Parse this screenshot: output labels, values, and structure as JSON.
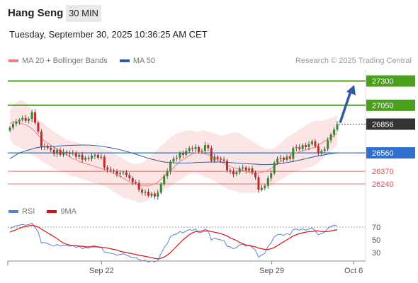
{
  "header": {
    "title": "Hang Seng",
    "timeframe": "30 MIN"
  },
  "datetime": "Tuesday, September 30, 2025 10:36:25 AM CET",
  "legend": [
    {
      "label": "MA 20 + Bollinger Bands",
      "color": "#f08080"
    },
    {
      "label": "MA 50",
      "color": "#2f5d9e"
    }
  ],
  "credit": "Research © 2025 Trading Central",
  "rsi_legend": [
    {
      "label": "RSI",
      "color": "#5b7fd6"
    },
    {
      "label": "9MA",
      "color": "#dd1111"
    }
  ],
  "chart_data": [
    {
      "type": "candlestick",
      "title": "Hang Seng",
      "timeframe": "30 MIN",
      "ylim": [
        26080,
        27420
      ],
      "current_price": 26856,
      "x_ticks": [
        "Sep 22",
        "Sep 29",
        "Oct 6"
      ],
      "levels": [
        {
          "value": 27300,
          "label": "27300",
          "type": "resistance",
          "color": "#4aa01a"
        },
        {
          "value": 27050,
          "label": "27050",
          "type": "resistance",
          "color": "#4aa01a"
        },
        {
          "value": 26856,
          "label": "26856",
          "type": "last",
          "color": "#333333"
        },
        {
          "value": 26560,
          "label": "26560",
          "type": "pivot",
          "color": "#2f6fd0"
        },
        {
          "value": 26370,
          "label": "26370",
          "type": "support",
          "color": "#e05050"
        },
        {
          "value": 26240,
          "label": "26240",
          "type": "support",
          "color": "#e05050"
        }
      ],
      "projection": {
        "from": 26870,
        "to": 27260
      },
      "close": [
        26820,
        26860,
        26880,
        26900,
        26920,
        26890,
        26910,
        26980,
        26870,
        26780,
        26620,
        26630,
        26610,
        26590,
        26550,
        26590,
        26540,
        26570,
        26560,
        26550,
        26560,
        26520,
        26540,
        26490,
        26510,
        26500,
        26530,
        26540,
        26510,
        26520,
        26410,
        26390,
        26380,
        26370,
        26340,
        26350,
        26360,
        26330,
        26300,
        26260,
        26250,
        26180,
        26150,
        26160,
        26120,
        26140,
        26110,
        26150,
        26240,
        26320,
        26370,
        26470,
        26500,
        26510,
        26560,
        26540,
        26580,
        26610,
        26600,
        26620,
        26570,
        26580,
        26640,
        26610,
        26480,
        26520,
        26500,
        26490,
        26480,
        26380,
        26370,
        26340,
        26360,
        26400,
        26410,
        26380,
        26400,
        26360,
        26310,
        26180,
        26200,
        26220,
        26300,
        26350,
        26460,
        26500,
        26510,
        26490,
        26520,
        26500,
        26610,
        26620,
        26600,
        26640,
        26620,
        26650,
        26680,
        26630,
        26560,
        26580,
        26600,
        26690,
        26750,
        26800,
        26856
      ],
      "ma20": [
        26860,
        26880,
        26880,
        26870,
        26860,
        26850,
        26830,
        26810,
        26780,
        26740,
        26710,
        26680,
        26660,
        26640,
        26620,
        26600,
        26580,
        26560,
        26540,
        26520,
        26500,
        26490,
        26470,
        26460,
        26450,
        26440,
        26430,
        26420,
        26410,
        26400,
        26390,
        26380,
        26360,
        26350,
        26330,
        26320,
        26300,
        26280,
        26260,
        26250,
        26240,
        26230,
        26220,
        26220,
        26220,
        26230,
        26240,
        26260,
        26290,
        26320,
        26350,
        26380,
        26410,
        26440,
        26470,
        26490,
        26510,
        26530,
        26550,
        26560,
        26560,
        26560,
        26550,
        26540,
        26530,
        26510,
        26490,
        26470,
        26450,
        26430,
        26420,
        26410,
        26400,
        26390,
        26380,
        26370,
        26360,
        26350,
        26350,
        26350,
        26360,
        26370,
        26380,
        26400,
        26420,
        26450,
        26470,
        26490,
        26510,
        26530,
        26550,
        26560,
        26570,
        26580,
        26590,
        26600,
        26610,
        26620,
        26640,
        26660,
        26680,
        26700,
        26720,
        26740,
        26760
      ],
      "bb_upper": [
        27000,
        27050,
        27080,
        27100,
        27100,
        27080,
        27050,
        27000,
        26950,
        26900,
        26880,
        26860,
        26830,
        26800,
        26780,
        26760,
        26740,
        26720,
        26700,
        26690,
        26680,
        26670,
        26660,
        26650,
        26640,
        26630,
        26630,
        26620,
        26620,
        26610,
        26600,
        26590,
        26580,
        26560,
        26540,
        26520,
        26500,
        26480,
        26460,
        26450,
        26440,
        26450,
        26460,
        26480,
        26510,
        26540,
        26570,
        26600,
        26630,
        26660,
        26690,
        26720,
        26740,
        26760,
        26770,
        26780,
        26790,
        26790,
        26790,
        26780,
        26780,
        26790,
        26790,
        26780,
        26770,
        26760,
        26750,
        26740,
        26740,
        26750,
        26760,
        26770,
        26770,
        26760,
        26740,
        26720,
        26700,
        26680,
        26660,
        26640,
        26620,
        26610,
        26600,
        26600,
        26610,
        26630,
        26660,
        26690,
        26720,
        26740,
        26760,
        26780,
        26800,
        26820,
        26840,
        26860,
        26880,
        26890,
        26890,
        26890,
        26900,
        26910,
        26920,
        26930,
        26950
      ],
      "bb_lower": [
        26700,
        26650,
        26630,
        26620,
        26600,
        26580,
        26560,
        26540,
        26520,
        26500,
        26480,
        26460,
        26440,
        26420,
        26400,
        26390,
        26370,
        26360,
        26350,
        26330,
        26320,
        26310,
        26300,
        26290,
        26280,
        26270,
        26260,
        26250,
        26240,
        26230,
        26220,
        26200,
        26180,
        26160,
        26140,
        26120,
        26100,
        26090,
        26080,
        26070,
        26060,
        26050,
        26050,
        26060,
        26080,
        26100,
        26120,
        26140,
        26160,
        26180,
        26200,
        26220,
        26240,
        26260,
        26280,
        26300,
        26320,
        26340,
        26350,
        26350,
        26340,
        26330,
        26310,
        26300,
        26290,
        26270,
        26250,
        26230,
        26210,
        26190,
        26180,
        26170,
        26160,
        26150,
        26150,
        26150,
        26150,
        26150,
        26150,
        26160,
        26170,
        26180,
        26200,
        26220,
        26240,
        26260,
        26280,
        26300,
        26320,
        26340,
        26360,
        26370,
        26380,
        26390,
        26400,
        26410,
        26420,
        26430,
        26460,
        26490,
        26520,
        26550,
        26580,
        26610,
        26640
      ],
      "ma50": [
        26500,
        26520,
        26540,
        26560,
        26570,
        26580,
        26590,
        26600,
        26610,
        26615,
        26620,
        26622,
        26624,
        26626,
        26628,
        26630,
        26632,
        26634,
        26636,
        26637,
        26638,
        26639,
        26640,
        26641,
        26641,
        26640,
        26638,
        26635,
        26632,
        26628,
        26624,
        26618,
        26612,
        26606,
        26600,
        26592,
        26584,
        26575,
        26566,
        26556,
        26546,
        26535,
        26525,
        26515,
        26505,
        26496,
        26488,
        26480,
        26472,
        26466,
        26462,
        26460,
        26458,
        26457,
        26456,
        26455,
        26456,
        26457,
        26458,
        26460,
        26462,
        26463,
        26464,
        26465,
        26466,
        26466,
        26466,
        26465,
        26464,
        26462,
        26460,
        26458,
        26456,
        26454,
        26452,
        26450,
        26448,
        26446,
        26444,
        26442,
        26440,
        26440,
        26440,
        26441,
        26443,
        26446,
        26450,
        26455,
        26460,
        26466,
        26472,
        26478,
        26485,
        26492,
        26500,
        26508,
        26515,
        26522,
        26529,
        26535,
        26541,
        26546,
        26551,
        26556,
        26560
      ]
    },
    {
      "type": "line",
      "title": "RSI",
      "ylim": [
        20,
        80
      ],
      "y_ticks": [
        70,
        50,
        30
      ],
      "series": [
        {
          "name": "RSI",
          "values": [
            68,
            70,
            72,
            73,
            74,
            73,
            74,
            76,
            70,
            62,
            45,
            46,
            44,
            42,
            40,
            43,
            40,
            42,
            41,
            40,
            41,
            38,
            40,
            36,
            38,
            37,
            40,
            41,
            38,
            39,
            31,
            30,
            29,
            28,
            26,
            27,
            28,
            26,
            24,
            22,
            22,
            19,
            17,
            18,
            15,
            17,
            15,
            18,
            28,
            38,
            44,
            55,
            58,
            59,
            63,
            61,
            64,
            66,
            65,
            67,
            61,
            62,
            67,
            64,
            50,
            53,
            51,
            50,
            49,
            40,
            39,
            36,
            38,
            42,
            43,
            40,
            42,
            38,
            34,
            23,
            26,
            29,
            40,
            45,
            55,
            58,
            59,
            57,
            60,
            58,
            66,
            67,
            65,
            67,
            65,
            67,
            69,
            64,
            58,
            60,
            62,
            68,
            71,
            73,
            72
          ]
        },
        {
          "name": "9MA",
          "values": [
            62,
            64,
            66,
            68,
            70,
            71,
            72,
            73,
            72,
            70,
            67,
            64,
            61,
            58,
            55,
            52,
            48,
            45,
            43,
            42,
            41,
            41,
            40,
            40,
            39,
            39,
            39,
            39,
            39,
            38,
            38,
            37,
            36,
            35,
            34,
            32,
            31,
            30,
            29,
            28,
            27,
            26,
            25,
            24,
            23,
            22,
            21,
            20,
            21,
            23,
            26,
            30,
            35,
            40,
            45,
            50,
            54,
            58,
            61,
            63,
            63,
            64,
            64,
            64,
            63,
            62,
            61,
            60,
            58,
            56,
            53,
            51,
            49,
            46,
            44,
            42,
            41,
            40,
            39,
            37,
            36,
            35,
            35,
            36,
            38,
            41,
            44,
            47,
            50,
            53,
            56,
            58,
            60,
            61,
            62,
            63,
            63,
            64,
            64,
            63,
            63,
            63,
            64,
            65,
            66
          ]
        }
      ]
    }
  ]
}
